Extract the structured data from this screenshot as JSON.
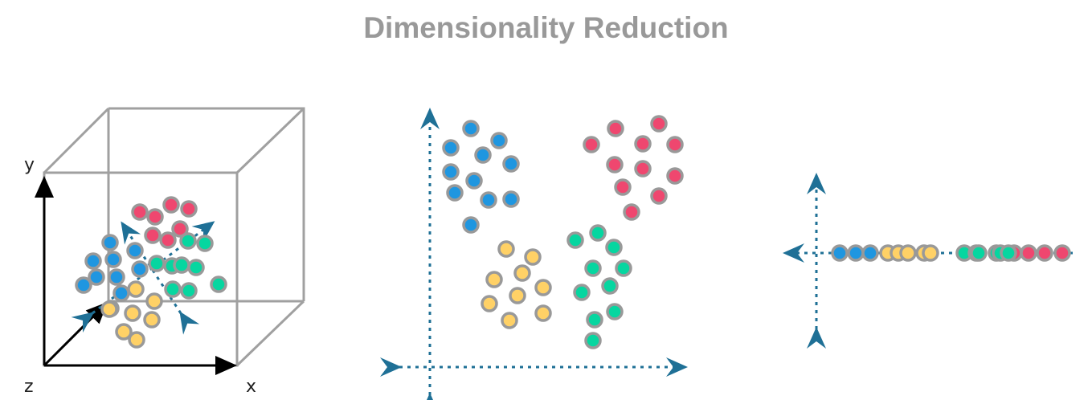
{
  "title": "Dimensionality Reduction",
  "axis_labels": {
    "x": "x",
    "y": "y",
    "z": "z"
  },
  "colors": {
    "blue": "#1f96e0",
    "red": "#ef476f",
    "green": "#06d6a0",
    "yellow": "#ffd166",
    "outline": "#999999",
    "axis_dotted": "#1f7096",
    "cube": "#a0a0a0",
    "axis": "#000000"
  }
}
